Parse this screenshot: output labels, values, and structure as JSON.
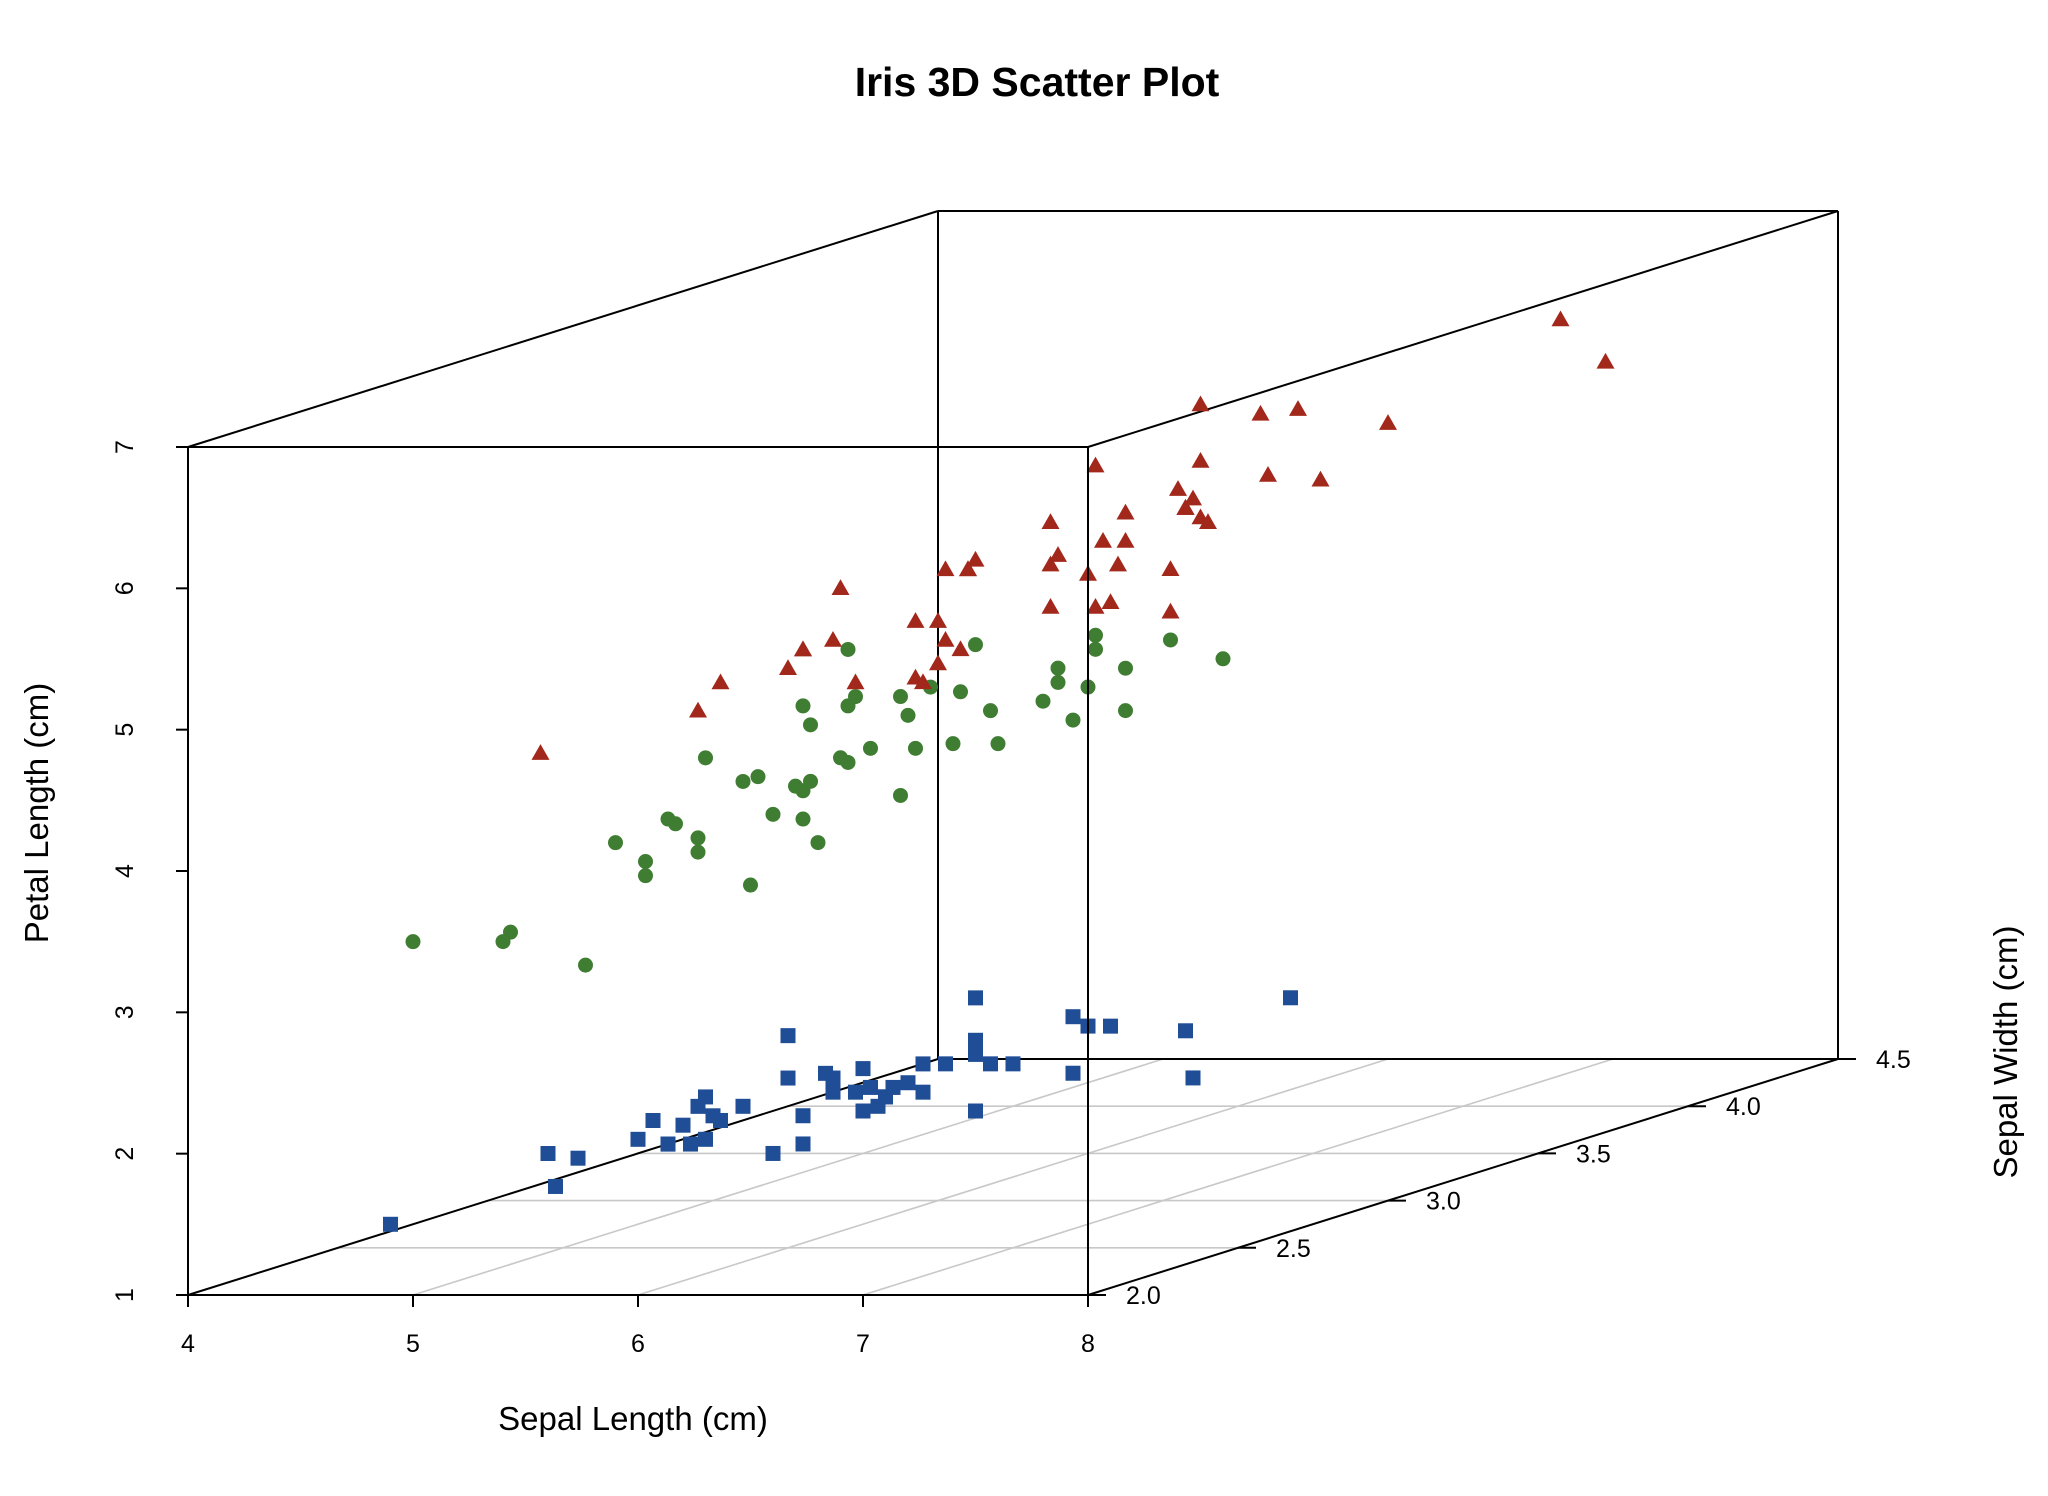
{
  "chart_data": {
    "type": "scatter",
    "subtype": "3d",
    "title": "Iris 3D Scatter Plot",
    "xlabel": "Sepal Length (cm)",
    "ylabel": "Sepal Width (cm)",
    "zlabel": "Petal Length (cm)",
    "xlim": [
      4,
      8
    ],
    "ylim": [
      2.0,
      4.5
    ],
    "zlim": [
      1,
      7
    ],
    "x_ticks": [
      "4",
      "5",
      "6",
      "7",
      "8"
    ],
    "y_ticks": [
      "2.0",
      "2.5",
      "3.0",
      "3.5",
      "4.0",
      "4.5"
    ],
    "z_ticks": [
      "1",
      "2",
      "3",
      "4",
      "5",
      "6",
      "7"
    ],
    "grid": "xy-plane",
    "legend": "none",
    "series": [
      {
        "marker": "square",
        "color": "#1f4e96",
        "points": [
          [
            5.1,
            3.5,
            1.4
          ],
          [
            4.9,
            3.0,
            1.4
          ],
          [
            4.7,
            3.2,
            1.3
          ],
          [
            4.6,
            3.1,
            1.5
          ],
          [
            5.0,
            3.6,
            1.4
          ],
          [
            5.4,
            3.9,
            1.7
          ],
          [
            4.6,
            3.4,
            1.4
          ],
          [
            5.0,
            3.4,
            1.5
          ],
          [
            4.4,
            2.9,
            1.4
          ],
          [
            4.9,
            3.1,
            1.5
          ],
          [
            5.4,
            3.7,
            1.5
          ],
          [
            4.8,
            3.4,
            1.6
          ],
          [
            4.8,
            3.0,
            1.4
          ],
          [
            4.3,
            3.0,
            1.1
          ],
          [
            5.8,
            4.0,
            1.2
          ],
          [
            5.7,
            4.4,
            1.5
          ],
          [
            5.4,
            3.9,
            1.3
          ],
          [
            5.1,
            3.5,
            1.4
          ],
          [
            5.7,
            3.8,
            1.7
          ],
          [
            5.1,
            3.8,
            1.5
          ],
          [
            5.4,
            3.4,
            1.7
          ],
          [
            5.1,
            3.7,
            1.5
          ],
          [
            4.6,
            3.6,
            1.0
          ],
          [
            5.1,
            3.3,
            1.7
          ],
          [
            4.8,
            3.4,
            1.9
          ],
          [
            5.0,
            3.0,
            1.6
          ],
          [
            5.0,
            3.4,
            1.6
          ],
          [
            5.2,
            3.5,
            1.5
          ],
          [
            5.2,
            3.4,
            1.4
          ],
          [
            4.7,
            3.2,
            1.6
          ],
          [
            4.8,
            3.1,
            1.6
          ],
          [
            5.4,
            3.4,
            1.5
          ],
          [
            5.2,
            4.1,
            1.5
          ],
          [
            5.5,
            4.2,
            1.4
          ],
          [
            4.9,
            3.1,
            1.5
          ],
          [
            5.0,
            3.2,
            1.2
          ],
          [
            5.5,
            3.5,
            1.3
          ],
          [
            4.9,
            3.6,
            1.4
          ],
          [
            4.4,
            3.0,
            1.3
          ],
          [
            5.1,
            3.4,
            1.5
          ],
          [
            5.0,
            3.5,
            1.3
          ],
          [
            4.5,
            2.3,
            1.3
          ],
          [
            4.4,
            3.2,
            1.3
          ],
          [
            5.0,
            3.5,
            1.6
          ],
          [
            5.1,
            3.8,
            1.9
          ],
          [
            4.8,
            3.0,
            1.4
          ],
          [
            5.1,
            3.8,
            1.6
          ],
          [
            4.6,
            3.2,
            1.4
          ],
          [
            5.3,
            3.7,
            1.5
          ],
          [
            5.0,
            3.3,
            1.4
          ]
        ]
      },
      {
        "marker": "circle",
        "color": "#3f7d32",
        "points": [
          [
            7.0,
            3.2,
            4.7
          ],
          [
            6.4,
            3.2,
            4.5
          ],
          [
            6.9,
            3.1,
            4.9
          ],
          [
            5.5,
            2.3,
            4.0
          ],
          [
            6.5,
            2.8,
            4.6
          ],
          [
            5.7,
            2.8,
            4.5
          ],
          [
            6.3,
            3.3,
            4.7
          ],
          [
            4.9,
            2.4,
            3.3
          ],
          [
            6.6,
            2.9,
            4.6
          ],
          [
            5.2,
            2.7,
            3.9
          ],
          [
            5.0,
            2.0,
            3.5
          ],
          [
            5.9,
            3.0,
            4.2
          ],
          [
            6.0,
            2.2,
            4.0
          ],
          [
            6.1,
            2.9,
            4.7
          ],
          [
            5.6,
            2.9,
            3.6
          ],
          [
            6.7,
            3.1,
            4.4
          ],
          [
            5.6,
            3.0,
            4.5
          ],
          [
            5.8,
            2.7,
            4.1
          ],
          [
            6.2,
            2.2,
            4.5
          ],
          [
            5.6,
            2.5,
            3.9
          ],
          [
            5.9,
            3.2,
            4.8
          ],
          [
            6.1,
            2.8,
            4.0
          ],
          [
            6.3,
            2.5,
            4.9
          ],
          [
            6.1,
            2.8,
            4.7
          ],
          [
            6.4,
            2.9,
            4.3
          ],
          [
            6.6,
            3.0,
            4.4
          ],
          [
            6.8,
            2.8,
            4.8
          ],
          [
            6.7,
            3.0,
            5.0
          ],
          [
            6.0,
            2.9,
            4.5
          ],
          [
            5.7,
            2.6,
            3.5
          ],
          [
            5.5,
            2.4,
            3.8
          ],
          [
            5.5,
            2.4,
            3.7
          ],
          [
            5.8,
            2.7,
            3.9
          ],
          [
            6.0,
            2.7,
            5.1
          ],
          [
            5.4,
            3.0,
            4.5
          ],
          [
            6.0,
            3.4,
            4.5
          ],
          [
            6.7,
            3.1,
            4.7
          ],
          [
            6.3,
            2.3,
            4.4
          ],
          [
            5.6,
            3.0,
            4.1
          ],
          [
            5.5,
            2.5,
            4.0
          ],
          [
            5.5,
            2.6,
            4.4
          ],
          [
            6.1,
            3.0,
            4.6
          ],
          [
            5.8,
            2.6,
            4.0
          ],
          [
            5.0,
            2.3,
            3.3
          ],
          [
            5.6,
            2.7,
            4.2
          ],
          [
            5.7,
            3.0,
            4.2
          ],
          [
            5.7,
            2.9,
            4.2
          ],
          [
            6.2,
            2.9,
            4.3
          ],
          [
            5.1,
            2.5,
            3.0
          ],
          [
            5.7,
            2.8,
            4.1
          ]
        ]
      },
      {
        "marker": "triangle",
        "color": "#a3281c",
        "points": [
          [
            6.3,
            3.3,
            6.0
          ],
          [
            5.8,
            2.7,
            5.1
          ],
          [
            7.1,
            3.0,
            5.9
          ],
          [
            6.3,
            2.9,
            5.6
          ],
          [
            6.5,
            3.0,
            5.8
          ],
          [
            7.6,
            3.0,
            6.6
          ],
          [
            4.9,
            2.5,
            4.5
          ],
          [
            7.3,
            2.9,
            6.3
          ],
          [
            6.7,
            2.5,
            5.8
          ],
          [
            7.2,
            3.6,
            6.1
          ],
          [
            6.5,
            3.2,
            5.1
          ],
          [
            6.4,
            2.7,
            5.3
          ],
          [
            6.8,
            3.0,
            5.5
          ],
          [
            5.7,
            2.5,
            5.0
          ],
          [
            5.8,
            2.8,
            5.1
          ],
          [
            6.4,
            3.2,
            5.3
          ],
          [
            6.5,
            3.0,
            5.5
          ],
          [
            7.7,
            3.8,
            6.7
          ],
          [
            7.7,
            2.6,
            6.9
          ],
          [
            6.0,
            2.2,
            5.0
          ],
          [
            6.9,
            3.2,
            5.7
          ],
          [
            5.6,
            2.8,
            4.9
          ],
          [
            7.7,
            2.8,
            6.7
          ],
          [
            6.3,
            2.7,
            4.9
          ],
          [
            6.7,
            3.3,
            5.7
          ],
          [
            7.2,
            3.2,
            6.0
          ],
          [
            6.2,
            2.8,
            4.8
          ],
          [
            6.1,
            3.0,
            4.9
          ],
          [
            6.4,
            2.8,
            5.6
          ],
          [
            7.2,
            3.0,
            5.8
          ],
          [
            7.4,
            2.8,
            6.1
          ],
          [
            7.9,
            3.8,
            6.4
          ],
          [
            6.4,
            2.8,
            5.6
          ],
          [
            6.3,
            2.8,
            5.1
          ],
          [
            6.1,
            2.6,
            5.6
          ],
          [
            7.7,
            3.0,
            6.1
          ],
          [
            6.3,
            3.4,
            5.6
          ],
          [
            6.4,
            3.1,
            5.5
          ],
          [
            6.0,
            3.0,
            4.8
          ],
          [
            6.9,
            3.1,
            5.4
          ],
          [
            6.7,
            3.1,
            5.6
          ],
          [
            6.9,
            3.1,
            5.1
          ],
          [
            5.8,
            2.7,
            5.1
          ],
          [
            6.8,
            3.2,
            5.9
          ],
          [
            6.7,
            3.3,
            5.7
          ],
          [
            6.7,
            3.0,
            5.2
          ],
          [
            6.3,
            2.5,
            5.0
          ],
          [
            6.5,
            3.0,
            5.2
          ],
          [
            6.2,
            3.4,
            5.4
          ],
          [
            5.9,
            3.0,
            5.1
          ]
        ]
      }
    ]
  }
}
